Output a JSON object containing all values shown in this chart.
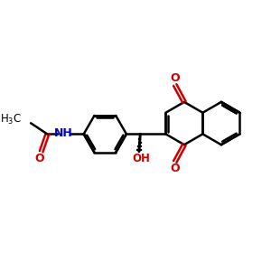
{
  "bg_color": "#ffffff",
  "bond_color": "#000000",
  "N_color": "#0000cc",
  "O_color": "#cc0000",
  "bond_width": 1.8,
  "fig_size": [
    3.0,
    3.0
  ],
  "dpi": 100,
  "xlim": [
    0,
    10
  ],
  "ylim": [
    0,
    10
  ]
}
